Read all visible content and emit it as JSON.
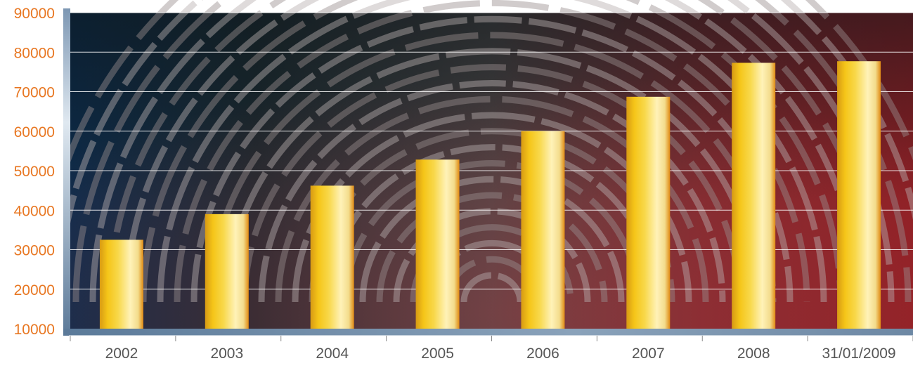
{
  "chart_data": {
    "type": "bar",
    "categories": [
      "2002",
      "2003",
      "2004",
      "2005",
      "2006",
      "2007",
      "2008",
      "31/01/2009"
    ],
    "values": [
      32500,
      39000,
      46200,
      52800,
      60000,
      68700,
      77300,
      77700
    ],
    "ylim": [
      10000,
      90000
    ],
    "yticks": [
      "10000",
      "20000",
      "30000",
      "40000",
      "50000",
      "60000",
      "70000",
      "80000",
      "90000"
    ],
    "title": "",
    "xlabel": "",
    "ylabel": "",
    "grid": true,
    "legend": "none",
    "colors": {
      "bar_gold": "#f5c518",
      "bar_light": "#fff2b8",
      "bar_edge": "#e08a12",
      "ytick_text": "#e87722",
      "xtick_text": "#555555",
      "gridline": "#ffffff",
      "axis": "#6e8aa6",
      "background_left": "#0d2c4c",
      "background_mid": "#3a3d3d",
      "background_right": "#8c1f24"
    }
  }
}
